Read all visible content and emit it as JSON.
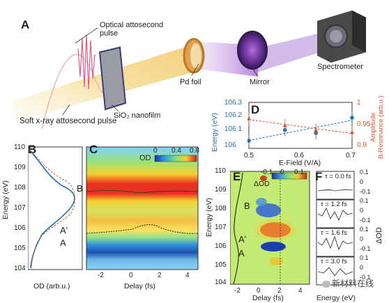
{
  "panelA": {
    "letter": "A",
    "optical_pulse": "Optical attosecond\npulse",
    "soft_xray": "Soft x-ray attosecond pulse",
    "nanofilm": "SiO₂ nanofilm",
    "pd_foil": "Pd foil",
    "mirror": "Mirror",
    "spectrometer": "Spectrometer"
  },
  "panelB": {
    "letter": "B",
    "ylabel": "Energy (eV)",
    "yticks": [
      "110",
      "109",
      "108",
      "107",
      "106",
      "105",
      "104"
    ],
    "xlabel": "OD (arb.u.)",
    "peak_labels": [
      "B",
      "A'",
      "A"
    ]
  },
  "panelC": {
    "letter": "C",
    "colorbar_label": "OD",
    "colorbar_ticks": [
      "0",
      "0.4",
      "0.8"
    ],
    "xlabel": "Delay (fs)",
    "xticks": [
      "-2",
      "0",
      "2",
      "4"
    ]
  },
  "panelD": {
    "letter": "D",
    "ylabel_left": "Energy (eV)",
    "ylabel_right": "Amplitude\nB-Resonance (arb.u.)",
    "left_ticks": [
      "106.3",
      "106.2",
      "106.1",
      "106"
    ],
    "right_ticks": [
      "1",
      "0.95",
      "0.9"
    ],
    "xlabel": "E-Field (V/A)",
    "xticks": [
      "0.5",
      "0.6",
      "0.7"
    ],
    "colors": {
      "energy": "#1f6fb5",
      "amplitude": "#d9532b"
    }
  },
  "panelE": {
    "letter": "E",
    "ylabel": "Energy (eV)",
    "yticks": [
      "110",
      "109",
      "108",
      "107",
      "106",
      "105",
      "104"
    ],
    "colorbar_label": "ΔOD",
    "colorbar_ticks": [
      "-0.1",
      "0",
      "0.1"
    ],
    "xlabel": "Delay (fs)",
    "xticks": [
      "-2",
      "0",
      "2",
      "4"
    ],
    "peak_labels": [
      "B",
      "A'",
      "A"
    ]
  },
  "panelF": {
    "letter": "F",
    "taus": [
      "τ = 0.0 fs",
      "τ = 1.2 fs",
      "τ = 1.6 fs",
      "τ = 3.0 fs"
    ],
    "right_ticks": [
      "0.1",
      "0",
      "-0.1",
      "0.1",
      "0",
      "-0.1",
      "0.1",
      "0",
      "-0.1",
      "0.1",
      "0",
      "-0.1"
    ],
    "right_label": "ΔOD",
    "xlabel": "Energy (eV)"
  },
  "watermark": "新材料在线",
  "chart_data": [
    {
      "type": "line",
      "panel": "D",
      "xlabel": "E-Field (V/A)",
      "series": [
        {
          "name": "Energy (eV)",
          "axis": "left",
          "x": [
            0.5,
            0.57,
            0.63,
            0.7
          ],
          "values": [
            106.05,
            106.12,
            106.1,
            106.2
          ]
        },
        {
          "name": "Amplitude B-Resonance (arb.u.)",
          "axis": "right",
          "x": [
            0.5,
            0.57,
            0.63,
            0.7
          ],
          "values": [
            0.965,
            0.95,
            0.94,
            0.935
          ]
        }
      ],
      "ylim_left": [
        106,
        106.3
      ],
      "ylim_right": [
        0.9,
        1.0
      ],
      "xlim": [
        0.5,
        0.7
      ]
    }
  ]
}
